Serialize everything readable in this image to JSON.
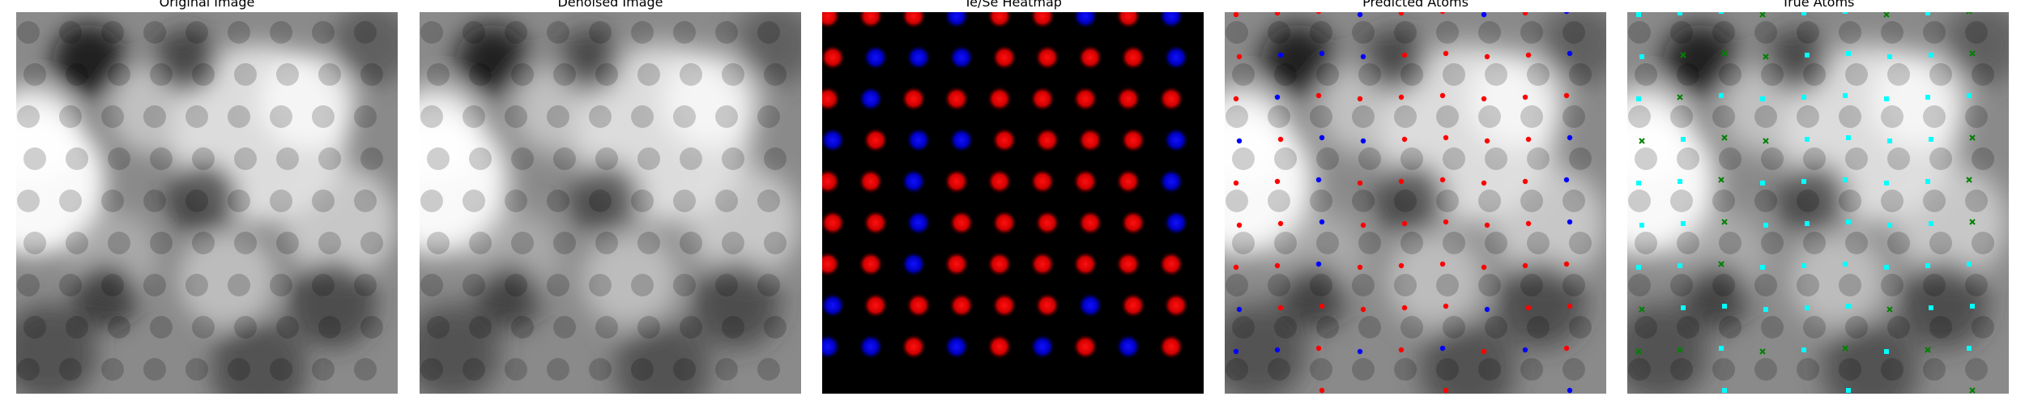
{
  "figure": {
    "panels": [
      {
        "key": "original",
        "title": "Original Image"
      },
      {
        "key": "denoised",
        "title": "Denoised Image"
      },
      {
        "key": "heatmap",
        "title": "Te/Se Heatmap"
      },
      {
        "key": "predicted",
        "title": "Predicted Atoms"
      },
      {
        "key": "true",
        "title": "True Atoms"
      }
    ]
  },
  "colors": {
    "heatmap_te": "#ff1010",
    "heatmap_se": "#1010ff",
    "predicted_te": "#ff0000",
    "predicted_se": "#0000ff",
    "true_te": "#00ffff",
    "true_se": "#008000"
  }
}
